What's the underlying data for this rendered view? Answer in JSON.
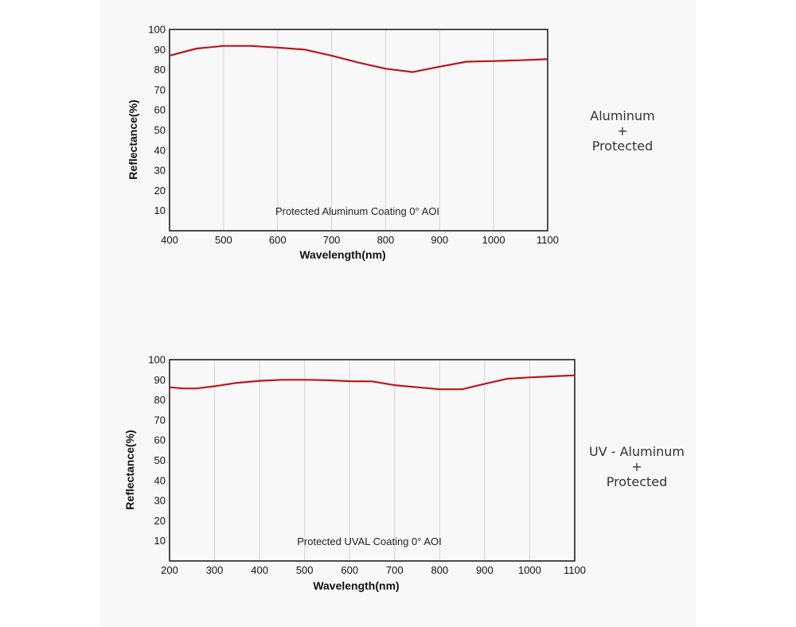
{
  "chart_data": [
    {
      "type": "line",
      "xlabel": "Wavelength(nm)",
      "ylabel": "Reflectance(%)",
      "xlim": [
        400,
        1100
      ],
      "ylim": [
        0,
        100
      ],
      "x_ticks": [
        400,
        500,
        600,
        700,
        800,
        900,
        1000,
        1100
      ],
      "y_ticks": [
        10,
        20,
        30,
        40,
        50,
        60,
        70,
        80,
        90,
        100
      ],
      "grid": "vertical",
      "annotation": "Protected Aluminum Coating  0°  AOI",
      "line_color": "#c0141c",
      "series": [
        {
          "x": [
            400,
            450,
            500,
            550,
            600,
            650,
            700,
            750,
            800,
            850,
            900,
            950,
            1000,
            1050,
            1100
          ],
          "y": [
            87,
            90.5,
            91.8,
            91.8,
            91,
            90,
            87,
            83.5,
            80.5,
            78.8,
            81.5,
            84,
            84.3,
            84.7,
            85.2
          ]
        }
      ]
    },
    {
      "type": "line",
      "xlabel": "Wavelength(nm)",
      "ylabel": "Reflectance(%)",
      "xlim": [
        200,
        1100
      ],
      "ylim": [
        0,
        100
      ],
      "x_ticks": [
        200,
        300,
        400,
        500,
        600,
        700,
        800,
        900,
        1000,
        1100
      ],
      "y_ticks": [
        10,
        20,
        30,
        40,
        50,
        60,
        70,
        80,
        90,
        100
      ],
      "grid": "vertical",
      "annotation": "Protected UVAL Coating  0°  AOI",
      "line_color": "#c0141c",
      "series": [
        {
          "x": [
            200,
            230,
            260,
            300,
            350,
            400,
            450,
            500,
            550,
            600,
            650,
            700,
            750,
            800,
            850,
            900,
            950,
            1000,
            1050,
            1100
          ],
          "y": [
            86.3,
            85.7,
            85.7,
            86.8,
            88.5,
            89.5,
            90,
            90,
            89.8,
            89.3,
            89.2,
            87.3,
            86.3,
            85.3,
            85.3,
            88,
            90.5,
            91.2,
            91.7,
            92.2
          ]
        }
      ]
    }
  ],
  "side_labels": [
    {
      "line1": "Aluminum",
      "line2": "+",
      "line3": "Protected"
    },
    {
      "line1": "UV - Aluminum",
      "line2": "+",
      "line3": "Protected"
    }
  ]
}
